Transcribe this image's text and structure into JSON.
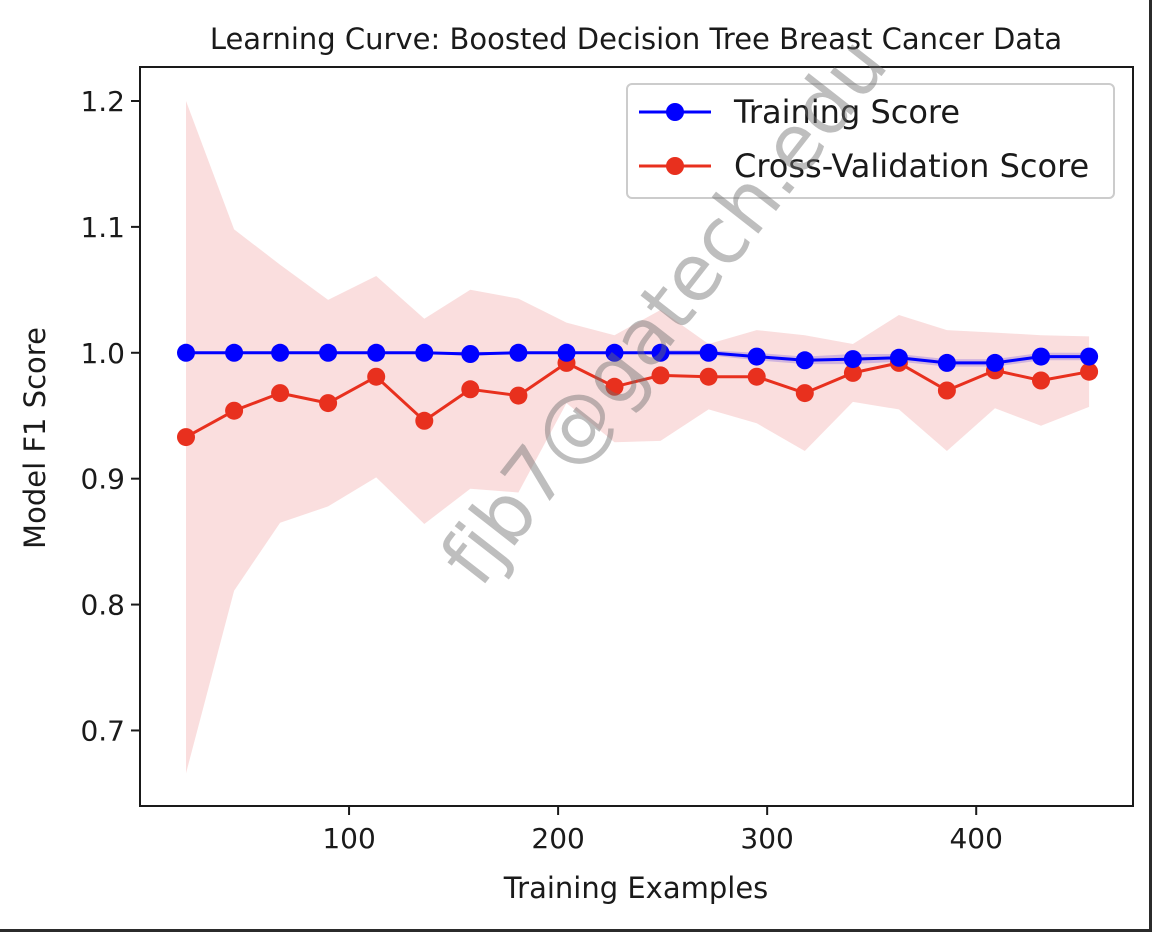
{
  "chart_data": {
    "type": "line",
    "title": "Learning Curve: Boosted Decision Tree Breast Cancer Data",
    "xlabel": "Training Examples",
    "ylabel": "Model F1 Score",
    "xlim": [
      0,
      475
    ],
    "ylim": [
      0.64,
      1.227
    ],
    "xticks": [
      100,
      200,
      300,
      400
    ],
    "yticks": [
      0.7,
      0.8,
      0.9,
      1.0,
      1.1,
      1.2
    ],
    "xtick_labels": [
      "100",
      "200",
      "300",
      "400"
    ],
    "ytick_labels": [
      "0.7",
      "0.8",
      "0.9",
      "1.0",
      "1.1",
      "1.2"
    ],
    "grid": false,
    "legend_position": "top-right",
    "x": [
      22,
      45,
      67,
      90,
      113,
      136,
      158,
      181,
      204,
      227,
      249,
      272,
      295,
      318,
      341,
      363,
      386,
      409,
      431,
      454
    ],
    "series": [
      {
        "name": "Training Score",
        "color": "#0000ff",
        "marker": "circle",
        "values": [
          1.0,
          1.0,
          1.0,
          1.0,
          1.0,
          1.0,
          0.999,
          1.0,
          1.0,
          1.0,
          1.0,
          1.0,
          0.997,
          0.994,
          0.995,
          0.996,
          0.992,
          0.992,
          0.997,
          0.997
        ],
        "band_lower": [
          1.0,
          1.0,
          1.0,
          1.0,
          1.0,
          1.0,
          0.997,
          1.0,
          1.0,
          1.0,
          0.998,
          0.998,
          0.994,
          0.991,
          0.991,
          0.993,
          0.989,
          0.989,
          0.994,
          0.994
        ],
        "band_upper": [
          1.0,
          1.0,
          1.0,
          1.0,
          1.0,
          1.0,
          1.001,
          1.0,
          1.0,
          1.0,
          1.002,
          1.002,
          1.0,
          0.997,
          0.999,
          0.999,
          0.995,
          0.995,
          1.0,
          1.0
        ],
        "band_color": "#8080ff"
      },
      {
        "name": "Cross-Validation Score",
        "color": "#e8301e",
        "marker": "circle",
        "values": [
          0.933,
          0.954,
          0.968,
          0.96,
          0.981,
          0.946,
          0.971,
          0.966,
          0.992,
          0.973,
          0.982,
          0.981,
          0.981,
          0.968,
          0.984,
          0.992,
          0.97,
          0.986,
          0.978,
          0.985
        ],
        "band_lower": [
          0.666,
          0.811,
          0.865,
          0.878,
          0.901,
          0.864,
          0.892,
          0.889,
          0.96,
          0.929,
          0.93,
          0.955,
          0.944,
          0.922,
          0.961,
          0.955,
          0.922,
          0.956,
          0.942,
          0.957
        ],
        "band_upper": [
          1.2,
          1.098,
          1.07,
          1.042,
          1.061,
          1.027,
          1.05,
          1.043,
          1.024,
          1.014,
          1.034,
          1.007,
          1.018,
          1.014,
          1.007,
          1.03,
          1.018,
          1.016,
          1.014,
          1.013
        ],
        "band_color": "#f4b6b6"
      }
    ]
  },
  "watermark": {
    "text": "fjb7@gatech.edu"
  }
}
